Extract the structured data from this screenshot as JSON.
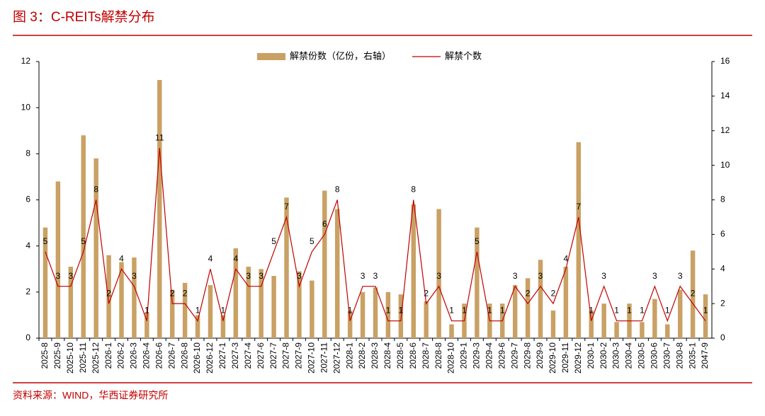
{
  "chart_data": {
    "type": "bar-line",
    "title": "图 3：C-REITs解禁分布",
    "source": "资料来源：WIND，华西证券研究所",
    "categories": [
      "2025-8",
      "2025-9",
      "2025-10",
      "2025-11",
      "2025-12",
      "2026-1",
      "2026-2",
      "2026-3",
      "2026-4",
      "2026-6",
      "2026-7",
      "2026-8",
      "2026-10",
      "2026-12",
      "2027-1",
      "2027-3",
      "2027-4",
      "2027-6",
      "2027-7",
      "2027-8",
      "2027-9",
      "2027-10",
      "2027-11",
      "2027-12",
      "2028-1",
      "2028-2",
      "2028-3",
      "2028-4",
      "2028-5",
      "2028-6",
      "2028-7",
      "2028-8",
      "2028-10",
      "2029-1",
      "2029-3",
      "2029-4",
      "2029-6",
      "2029-7",
      "2029-8",
      "2029-9",
      "2029-10",
      "2029-11",
      "2029-12",
      "2030-1",
      "2030-2",
      "2030-3",
      "2030-4",
      "2030-5",
      "2030-6",
      "2030-7",
      "2030-8",
      "2035-1",
      "2047-9"
    ],
    "series": [
      {
        "name": "解禁份数（亿份，右轴）",
        "kind": "bar",
        "axis": "y",
        "color": "#c9a164",
        "values": [
          4.8,
          6.8,
          3.1,
          8.8,
          7.8,
          3.6,
          3.3,
          3.5,
          1.1,
          11.2,
          2.1,
          2.4,
          1.0,
          2.3,
          1.0,
          3.9,
          3.1,
          3.0,
          2.7,
          6.1,
          2.9,
          2.5,
          6.4,
          5.6,
          1.2,
          2.0,
          2.2,
          2.0,
          1.9,
          5.8,
          1.6,
          5.6,
          0.6,
          1.5,
          4.8,
          1.5,
          1.5,
          2.3,
          2.6,
          3.4,
          1.2,
          3.1,
          8.5,
          1.2,
          1.5,
          0.7,
          1.5,
          0.7,
          1.7,
          0.6,
          2.1,
          3.8,
          1.9
        ]
      },
      {
        "name": "解禁个数",
        "kind": "line",
        "axis": "y2",
        "color": "#c00000",
        "values": [
          5,
          3,
          3,
          5,
          8,
          2,
          4,
          3,
          1,
          11,
          2,
          2,
          1,
          4,
          1,
          4,
          3,
          3,
          5,
          7,
          3,
          5,
          6,
          8,
          1,
          3,
          3,
          1,
          1,
          8,
          2,
          3,
          1,
          1,
          5,
          1,
          1,
          3,
          2,
          3,
          2,
          4,
          7,
          1,
          3,
          1,
          1,
          1,
          3,
          1,
          3,
          2,
          1
        ]
      }
    ],
    "ylim": [
      0,
      12
    ],
    "yticks": [
      0,
      2,
      4,
      6,
      8,
      10,
      12
    ],
    "y2lim": [
      0,
      16
    ],
    "y2ticks": [
      0,
      2,
      4,
      6,
      8,
      10,
      12,
      14,
      16
    ],
    "legend": "top"
  }
}
